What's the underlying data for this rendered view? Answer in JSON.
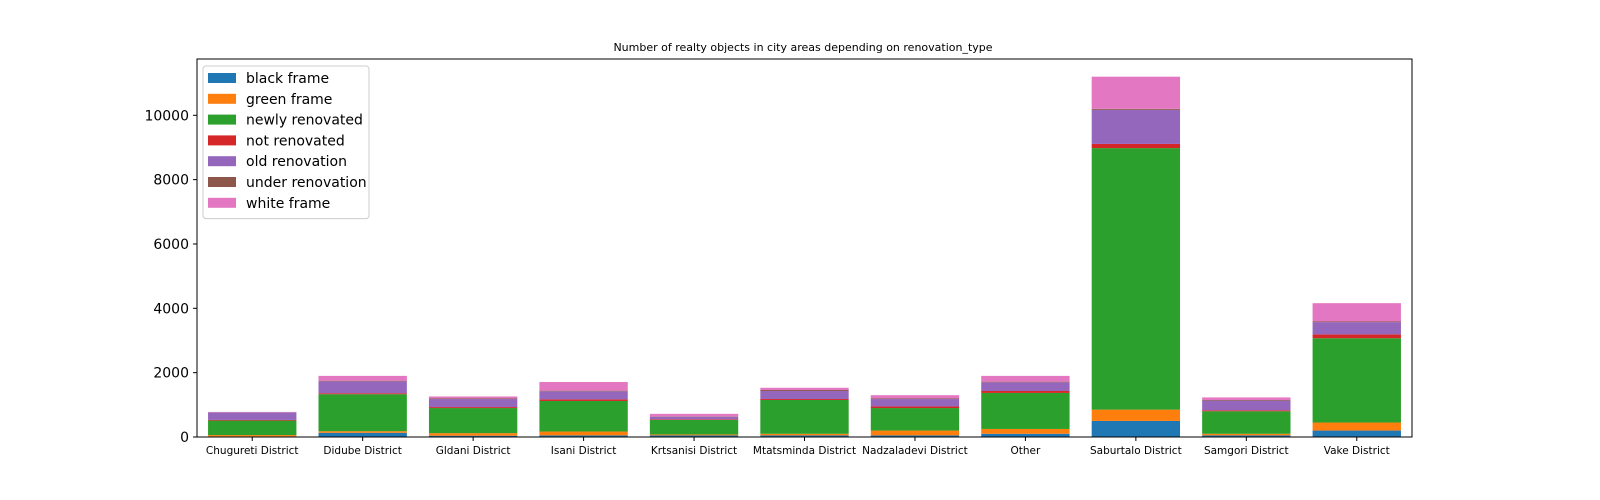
{
  "chart_data": {
    "type": "bar",
    "stacked": true,
    "title": "Number of realty objects in city areas depending on renovation_type",
    "xlabel": "",
    "ylabel": "",
    "ylim": [
      0,
      11750
    ],
    "yticks": [
      0,
      2000,
      4000,
      6000,
      8000,
      10000
    ],
    "grid": false,
    "legend_position": "top-left",
    "categories": [
      "Chugureti District",
      "Didube District",
      "Gldani District",
      "Isani District",
      "Krtsanisi District",
      "Mtatsminda District",
      "Nadzaladevi District",
      "Other",
      "Saburtalo District",
      "Samgori District",
      "Vake District"
    ],
    "series": [
      {
        "name": "black frame",
        "color": "#1f77b4",
        "values": [
          20,
          130,
          40,
          50,
          50,
          50,
          50,
          100,
          500,
          50,
          200
        ]
      },
      {
        "name": "green frame",
        "color": "#ff7f0e",
        "values": [
          40,
          50,
          80,
          120,
          30,
          50,
          150,
          150,
          350,
          50,
          250
        ]
      },
      {
        "name": "newly renovated",
        "color": "#2ca02c",
        "values": [
          450,
          1150,
          780,
          950,
          450,
          1050,
          700,
          1120,
          8130,
          700,
          2620
        ]
      },
      {
        "name": "not renovated",
        "color": "#d62728",
        "values": [
          20,
          30,
          30,
          50,
          20,
          30,
          50,
          60,
          130,
          30,
          120
        ]
      },
      {
        "name": "old renovation",
        "color": "#9467bd",
        "values": [
          230,
          370,
          250,
          250,
          80,
          250,
          230,
          270,
          1060,
          300,
          380
        ]
      },
      {
        "name": "under renovation",
        "color": "#8c564b",
        "values": [
          5,
          20,
          20,
          20,
          10,
          30,
          20,
          20,
          30,
          20,
          20
        ]
      },
      {
        "name": "white frame",
        "color": "#e377c2",
        "values": [
          15,
          150,
          60,
          270,
          80,
          70,
          100,
          180,
          1000,
          80,
          570
        ]
      }
    ]
  }
}
